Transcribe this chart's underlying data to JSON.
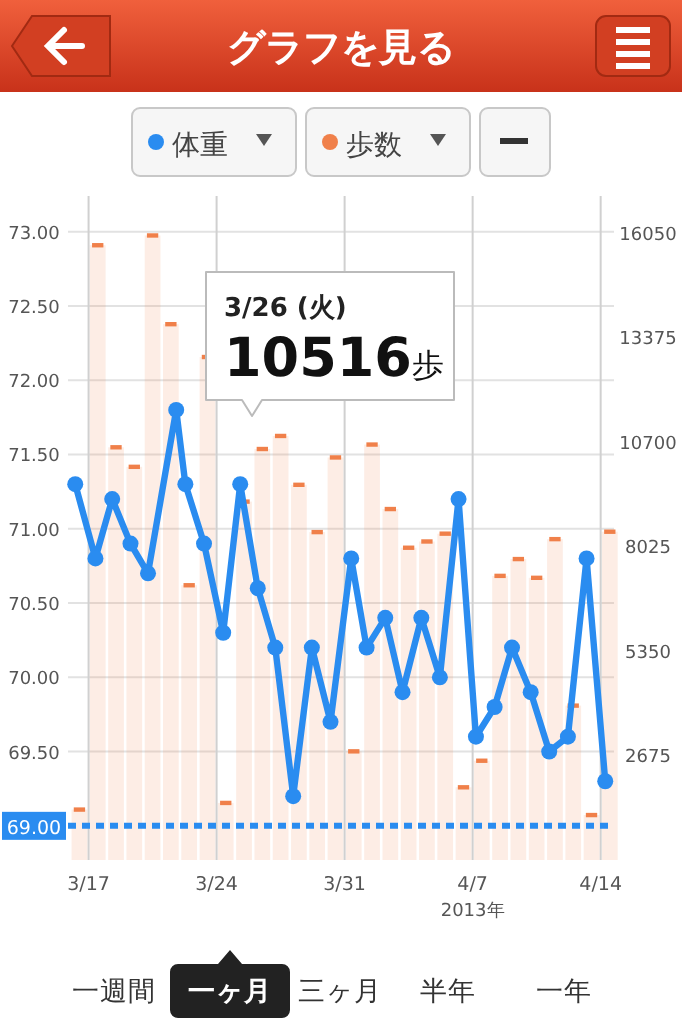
{
  "chart_data": {
    "type": "line",
    "title": "グラフを見る",
    "xlabel": "2013年",
    "xlim": [
      "2013-03-15T21:00",
      "2013-04-14T17:30"
    ],
    "xticks": [
      {
        "value": "2013-03-17",
        "label": "3/17"
      },
      {
        "value": "2013-03-24",
        "label": "3/24"
      },
      {
        "value": "2013-03-31",
        "label": "3/31"
      },
      {
        "value": "2013-04-07",
        "label": "4/7"
      },
      {
        "value": "2013-04-14",
        "label": "4/14"
      }
    ],
    "ylim": [
      68.77,
      73.24
    ],
    "yticks": [
      {
        "value": 69.5,
        "label": "69.50"
      },
      {
        "value": 70,
        "label": "70.00"
      },
      {
        "value": 70.5,
        "label": "70.50"
      },
      {
        "value": 71,
        "label": "71.00"
      },
      {
        "value": 71.5,
        "label": "71.50"
      },
      {
        "value": 72,
        "label": "72.00"
      },
      {
        "value": 72.5,
        "label": "72.50"
      },
      {
        "value": 73,
        "label": "73.00"
      }
    ],
    "y2lim": [
      0,
      16990
    ],
    "y2ticks": [
      2675,
      5350,
      8025,
      10700,
      13375,
      16050
    ],
    "grid": true,
    "legend": "top",
    "ref_lines": [
      {
        "axis": "y",
        "value": 69,
        "label": "69.00",
        "color": "#2a8cf0",
        "line_style": "dashed"
      }
    ],
    "annotations": [
      "3/26 (火)\n10516歩",
      "一週間",
      "一ヶ月",
      "三ヶ月",
      "半年",
      "一年"
    ],
    "series": [
      {
        "name": "歩数",
        "type": "bar",
        "axis": "y2",
        "color": "#f0804a",
        "x": [
          "2013-03-16T12:00",
          "2013-03-17T12:00",
          "2013-03-18T12:00",
          "2013-03-19T12:00",
          "2013-03-20T12:00",
          "2013-03-21T12:00",
          "2013-03-22T12:00",
          "2013-03-23T12:00",
          "2013-03-24T12:00",
          "2013-03-25T12:00",
          "2013-03-26T12:00",
          "2013-03-27T12:00",
          "2013-03-28T12:00",
          "2013-03-29T12:00",
          "2013-03-30T12:00",
          "2013-03-31T12:00",
          "2013-04-01T12:00",
          "2013-04-02T12:00",
          "2013-04-03T12:00",
          "2013-04-04T12:00",
          "2013-04-05T12:00",
          "2013-04-06T12:00",
          "2013-04-07T12:00",
          "2013-04-08T12:00",
          "2013-04-09T12:00",
          "2013-04-10T12:00",
          "2013-04-11T12:00",
          "2013-04-12T12:00",
          "2013-04-13T12:00",
          "2013-04-14T12:00"
        ],
        "values": [
          1290,
          15730,
          10560,
          10060,
          15980,
          13710,
          7030,
          12870,
          1460,
          9170,
          10516,
          10850,
          9600,
          8390,
          10300,
          2780,
          10630,
          8980,
          7990,
          8150,
          8350,
          1860,
          2540,
          7270,
          7700,
          7220,
          8210,
          3950,
          1150,
          8400
        ]
      },
      {
        "name": "体重",
        "color": "#2a8cf0",
        "marker": "circle",
        "line_style": "solid",
        "x": [
          "2013-03-16T06:30",
          "2013-03-17T09:00",
          "2013-03-18T07:00",
          "2013-03-19T07:00",
          "2013-03-20T06:00",
          "2013-03-21T19:00",
          "2013-03-22T07:00",
          "2013-03-23T07:30",
          "2013-03-24T08:40",
          "2013-03-25T07:00",
          "2013-03-26T06:00",
          "2013-03-27T05:00",
          "2013-03-28T04:30",
          "2013-03-29T05:00",
          "2013-03-30T05:30",
          "2013-03-31T08:40",
          "2013-04-01T04:50",
          "2013-04-02T05:20",
          "2013-04-03T04:00",
          "2013-04-04T04:40",
          "2013-04-05T05:00",
          "2013-04-06T05:30",
          "2013-04-07T04:20",
          "2013-04-08T04:50",
          "2013-04-09T03:40",
          "2013-04-10T04:10",
          "2013-04-11T04:30",
          "2013-04-12T05:00",
          "2013-04-13T05:30",
          "2013-04-14T06:00"
        ],
        "values": [
          71.3,
          70.8,
          71.2,
          70.9,
          70.7,
          71.8,
          71.3,
          70.9,
          70.3,
          71.3,
          70.6,
          70.2,
          69.2,
          70.2,
          69.7,
          70.8,
          70.2,
          70.4,
          69.9,
          70.4,
          70.0,
          71.2,
          69.6,
          69.8,
          70.2,
          69.9,
          69.5,
          69.6,
          70.8,
          69.3
        ]
      }
    ]
  }
}
